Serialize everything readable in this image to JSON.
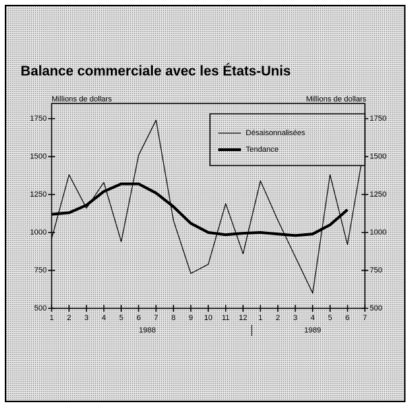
{
  "chart_data": {
    "type": "line",
    "title": "Balance commerciale avec les États-Unis",
    "ylabel_left": "Millions de dollars",
    "ylabel_right": "Millions de dollars",
    "categories": [
      "1",
      "2",
      "3",
      "4",
      "5",
      "6",
      "7",
      "8",
      "9",
      "10",
      "11",
      "12",
      "1",
      "2",
      "3",
      "4",
      "5",
      "6",
      "7"
    ],
    "groups": [
      {
        "label": "1988",
        "count": 12
      },
      {
        "label": "1989",
        "count": 7
      }
    ],
    "series": [
      {
        "name": "Désaisonnalisées",
        "color": "#000000",
        "width": 1.2,
        "values": [
          960,
          1380,
          1160,
          1330,
          940,
          1510,
          1740,
          1080,
          730,
          790,
          1190,
          860,
          1340,
          1080,
          840,
          600,
          1380,
          920,
          1590
        ]
      },
      {
        "name": "Tendance",
        "color": "#000000",
        "width": 4,
        "values": [
          1120,
          1130,
          1180,
          1270,
          1320,
          1320,
          1260,
          1170,
          1060,
          1000,
          985,
          995,
          1000,
          990,
          980,
          990,
          1050,
          1150,
          null
        ]
      }
    ],
    "ylim": [
      500,
      1850
    ],
    "yticks": [
      500,
      750,
      1000,
      1250,
      1500,
      1750
    ],
    "legend": "upper right"
  }
}
